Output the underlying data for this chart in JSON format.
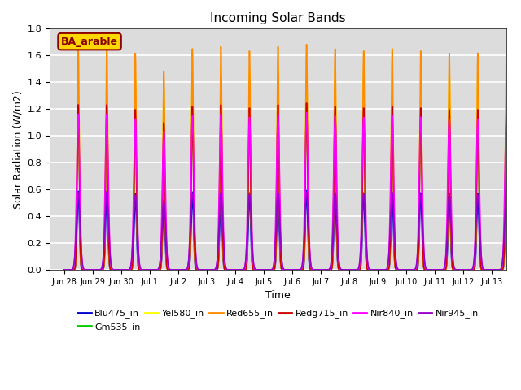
{
  "title": "Incoming Solar Bands",
  "xlabel": "Time",
  "ylabel": "Solar Radiation (W/m2)",
  "ylim": [
    0,
    1.8
  ],
  "annotation": "BA_arable",
  "annotation_color": "#8B0000",
  "annotation_bg": "#FFD700",
  "background_color": "#DCDCDC",
  "grid_color": "white",
  "series": [
    {
      "label": "Blu475_in",
      "color": "#0000CC",
      "peak_scale": 0.58,
      "sigma": 0.04,
      "lw": 1.2
    },
    {
      "label": "Gm535_in",
      "color": "#00CC00",
      "peak_scale": 1.3,
      "sigma": 0.038,
      "lw": 1.2
    },
    {
      "label": "Yel580_in",
      "color": "#FFFF00",
      "peak_scale": 1.5,
      "sigma": 0.038,
      "lw": 1.2
    },
    {
      "label": "Red655_in",
      "color": "#FF8C00",
      "peak_scale": 1.65,
      "sigma": 0.035,
      "lw": 1.2
    },
    {
      "label": "Redg715_in",
      "color": "#CC0000",
      "peak_scale": 1.22,
      "sigma": 0.038,
      "lw": 1.2
    },
    {
      "label": "Nir840_in",
      "color": "#FF00FF",
      "peak_scale": 1.15,
      "sigma": 0.055,
      "lw": 1.2
    },
    {
      "label": "Nir945_in",
      "color": "#9900CC",
      "peak_scale": 0.57,
      "sigma": 0.065,
      "lw": 1.2
    }
  ],
  "n_days": 16,
  "tick_labels": [
    "Jun 28",
    "Jun 29",
    "Jun 30",
    "Jul 1",
    "Jul 2",
    "Jul 3",
    "Jul 4",
    "Jul 5",
    "Jul 6",
    "Jul 7",
    "Jul 8",
    "Jul 9",
    "Jul 10",
    "Jul 11",
    "Jul 12",
    "Jul 13"
  ],
  "peak_heights_variation": [
    1.01,
    1.01,
    0.98,
    0.9,
    1.0,
    1.01,
    0.99,
    1.01,
    1.02,
    1.0,
    0.99,
    1.0,
    0.99,
    0.98,
    0.98,
    0.97
  ]
}
